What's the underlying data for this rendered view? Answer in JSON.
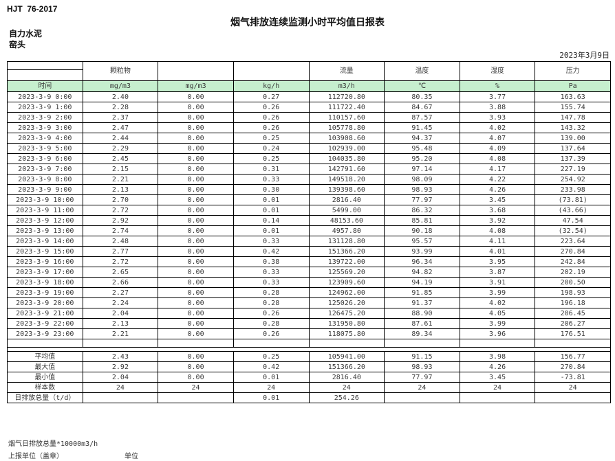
{
  "colors": {
    "header_green": "#C6EFCE",
    "negative_red": "#FF0000"
  },
  "header": {
    "standard": "HJT  76-2017",
    "title": "烟气排放连续监测小时平均值日报表",
    "company": "自力水泥",
    "station": "窑头",
    "date": "2023年3月9日"
  },
  "table": {
    "group_headers": [
      "",
      "颗粒物",
      "",
      "",
      "流量",
      "温度",
      "湿度",
      "压力"
    ],
    "units": [
      "时间",
      "mg/m3",
      "mg/m3",
      "kg/h",
      "m3/h",
      "℃",
      "%",
      "Pa"
    ],
    "rows": [
      [
        "2023-3-9 0:00",
        "2.40",
        "0.00",
        "0.27",
        "112720.80",
        "80.35",
        "3.77",
        "163.63"
      ],
      [
        "2023-3-9 1:00",
        "2.28",
        "0.00",
        "0.26",
        "111722.40",
        "84.67",
        "3.88",
        "155.74"
      ],
      [
        "2023-3-9 2:00",
        "2.37",
        "0.00",
        "0.26",
        "110157.60",
        "87.57",
        "3.93",
        "147.78"
      ],
      [
        "2023-3-9 3:00",
        "2.47",
        "0.00",
        "0.26",
        "105778.80",
        "91.45",
        "4.02",
        "143.32"
      ],
      [
        "2023-3-9 4:00",
        "2.44",
        "0.00",
        "0.25",
        "103908.60",
        "94.37",
        "4.07",
        "139.00"
      ],
      [
        "2023-3-9 5:00",
        "2.29",
        "0.00",
        "0.24",
        "102939.00",
        "95.48",
        "4.09",
        "137.64"
      ],
      [
        "2023-3-9 6:00",
        "2.45",
        "0.00",
        "0.25",
        "104035.80",
        "95.20",
        "4.08",
        "137.39"
      ],
      [
        "2023-3-9 7:00",
        "2.15",
        "0.00",
        "0.31",
        "142791.60",
        "97.14",
        "4.17",
        "227.19"
      ],
      [
        "2023-3-9 8:00",
        "2.21",
        "0.00",
        "0.33",
        "149518.20",
        "98.09",
        "4.22",
        "254.92"
      ],
      [
        "2023-3-9 9:00",
        "2.13",
        "0.00",
        "0.30",
        "139398.60",
        "98.93",
        "4.26",
        "233.98"
      ],
      [
        "2023-3-9 10:00",
        "2.70",
        "0.00",
        "0.01",
        "2816.40",
        "77.97",
        "3.45",
        "(73.81)"
      ],
      [
        "2023-3-9 11:00",
        "2.72",
        "0.00",
        "0.01",
        "5499.00",
        "86.32",
        "3.68",
        "(43.66)"
      ],
      [
        "2023-3-9 12:00",
        "2.92",
        "0.00",
        "0.14",
        "48153.60",
        "85.81",
        "3.92",
        "47.54"
      ],
      [
        "2023-3-9 13:00",
        "2.74",
        "0.00",
        "0.01",
        "4957.80",
        "90.18",
        "4.08",
        "(32.54)"
      ],
      [
        "2023-3-9 14:00",
        "2.48",
        "0.00",
        "0.33",
        "131128.80",
        "95.57",
        "4.11",
        "223.64"
      ],
      [
        "2023-3-9 15:00",
        "2.77",
        "0.00",
        "0.42",
        "151366.20",
        "93.99",
        "4.01",
        "270.84"
      ],
      [
        "2023-3-9 16:00",
        "2.72",
        "0.00",
        "0.38",
        "139722.00",
        "96.34",
        "3.95",
        "242.84"
      ],
      [
        "2023-3-9 17:00",
        "2.65",
        "0.00",
        "0.33",
        "125569.20",
        "94.82",
        "3.87",
        "202.19"
      ],
      [
        "2023-3-9 18:00",
        "2.66",
        "0.00",
        "0.33",
        "123909.60",
        "94.19",
        "3.91",
        "200.50"
      ],
      [
        "2023-3-9 19:00",
        "2.27",
        "0.00",
        "0.28",
        "124962.00",
        "91.85",
        "3.99",
        "198.93"
      ],
      [
        "2023-3-9 20:00",
        "2.24",
        "0.00",
        "0.28",
        "125026.20",
        "91.37",
        "4.02",
        "196.18"
      ],
      [
        "2023-3-9 21:00",
        "2.04",
        "0.00",
        "0.26",
        "126475.20",
        "88.90",
        "4.05",
        "206.45"
      ],
      [
        "2023-3-9 22:00",
        "2.13",
        "0.00",
        "0.28",
        "131950.80",
        "87.61",
        "3.99",
        "206.27"
      ],
      [
        "2023-3-9 23:00",
        "2.21",
        "0.00",
        "0.26",
        "118075.80",
        "89.34",
        "3.96",
        "176.51"
      ]
    ],
    "summary": [
      {
        "cells": [
          "平均值",
          "2.43",
          "0.00",
          "0.25",
          "105941.00",
          "91.15",
          "3.98",
          "156.77"
        ]
      },
      {
        "cells": [
          "最大值",
          "2.92",
          "0.00",
          "0.42",
          "151366.20",
          "98.93",
          "4.26",
          "270.84"
        ]
      },
      {
        "cells": [
          "最小值",
          "2.04",
          "0.00",
          "0.01",
          "2816.40",
          "77.97",
          "3.45",
          "-73.81"
        ]
      },
      {
        "cells": [
          "样本数",
          "24",
          "24",
          "24",
          "24",
          "24",
          "24",
          "24"
        ]
      },
      {
        "cells": [
          "日排放总量（t/d）",
          "",
          "",
          "0.01",
          "254.26",
          "",
          "",
          ""
        ],
        "label_left": true
      }
    ]
  },
  "footer": {
    "note": "烟气日排放总量*10000m3/h",
    "report_unit": "上报单位（盖章）",
    "unit": "单位"
  }
}
